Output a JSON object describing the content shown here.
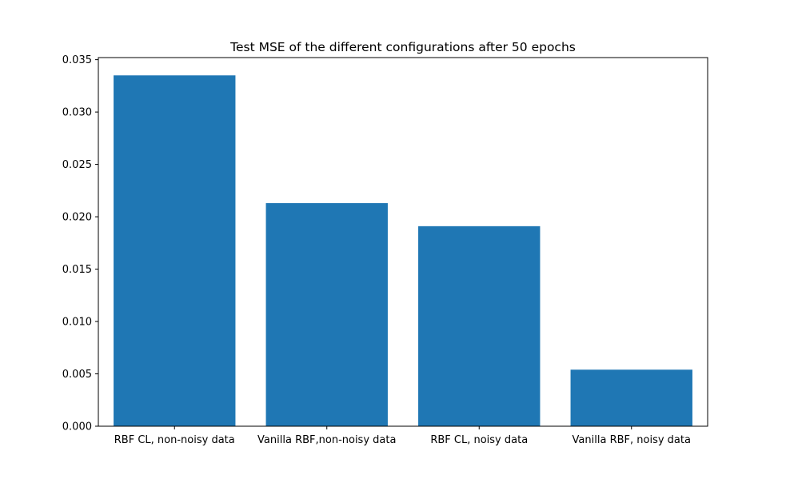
{
  "chart_data": {
    "type": "bar",
    "title": "Test MSE of the different configurations after 50 epochs",
    "xlabel": "",
    "ylabel": "",
    "categories": [
      "RBF CL, non-noisy data",
      "Vanilla RBF,non-noisy data",
      "RBF CL, noisy data",
      "Vanilla RBF, noisy data"
    ],
    "values": [
      0.0335,
      0.0213,
      0.0191,
      0.0054
    ],
    "ylim": [
      0,
      0.0352
    ],
    "yticks": [
      0.0,
      0.005,
      0.01,
      0.015,
      0.02,
      0.025,
      0.03,
      0.035
    ],
    "ytick_labels": [
      "0.000",
      "0.005",
      "0.010",
      "0.015",
      "0.020",
      "0.025",
      "0.030",
      "0.035"
    ],
    "bar_color": "#1f77b4",
    "grid": false,
    "legend": "none"
  }
}
